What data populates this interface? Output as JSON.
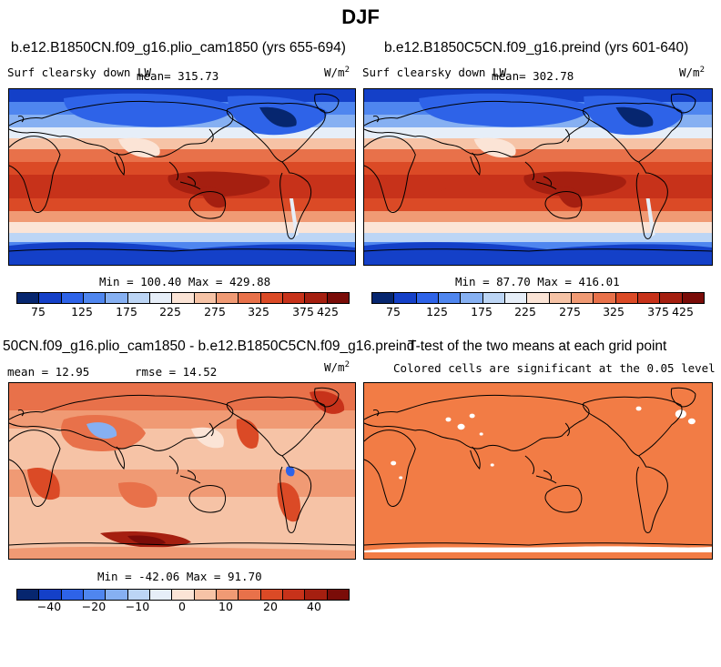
{
  "page": {
    "title": "DJF"
  },
  "palettes": {
    "abs": [
      "#06266f",
      "#1440c8",
      "#2e63e8",
      "#4f86ef",
      "#86b0f2",
      "#bcd5f5",
      "#e6eef8",
      "#fbe4d6",
      "#f6c3a6",
      "#f09a74",
      "#e8714a",
      "#db4a26",
      "#c7321a",
      "#a51f10",
      "#7a0c08"
    ],
    "diff": [
      "#06266f",
      "#1440c8",
      "#2e63e8",
      "#4f86ef",
      "#86b0f2",
      "#bcd5f5",
      "#e6eef8",
      "#fbe4d6",
      "#f6c3a6",
      "#f09a74",
      "#e8714a",
      "#db4a26",
      "#c7321a",
      "#a51f10",
      "#7a0c08"
    ],
    "sig": "#f27c45"
  },
  "panels": {
    "p1": {
      "title": "b.e12.B1850CN.f09_g16.plio_cam1850 (yrs 655-694)",
      "variable": "Surf clearsky down LW",
      "mean_label": "mean= 315.73",
      "units_main": "W/m",
      "units_exp": "2",
      "minmax": "Min = 100.40 Max = 429.88",
      "ticks": [
        "75",
        "125",
        "175",
        "225",
        "275",
        "325",
        "375",
        "425"
      ]
    },
    "p2": {
      "title": "b.e12.B1850C5CN.f09_g16.preind (yrs 601-640)",
      "variable": "Surf clearsky down LW",
      "mean_label": "mean= 302.78",
      "units_main": "W/m",
      "units_exp": "2",
      "minmax": "Min =  87.70 Max = 416.01",
      "ticks": [
        "75",
        "125",
        "175",
        "225",
        "275",
        "325",
        "375",
        "425"
      ]
    },
    "p3": {
      "title": "50CN.f09_g16.plio_cam1850 - b.e12.B1850C5CN.f09_g16.preind",
      "mean_label": "mean =  12.95",
      "rmse_label": "rmse =  14.52",
      "units_main": "W/m",
      "units_exp": "2",
      "minmax": "Min = -42.06 Max =  91.70",
      "ticks": [
        "−40",
        "−20",
        "−10",
        "0",
        "10",
        "20",
        "40"
      ]
    },
    "p4": {
      "title": "T-test of the two means at each grid point",
      "subtitle": "Colored cells are significant at the 0.05 level"
    }
  }
}
